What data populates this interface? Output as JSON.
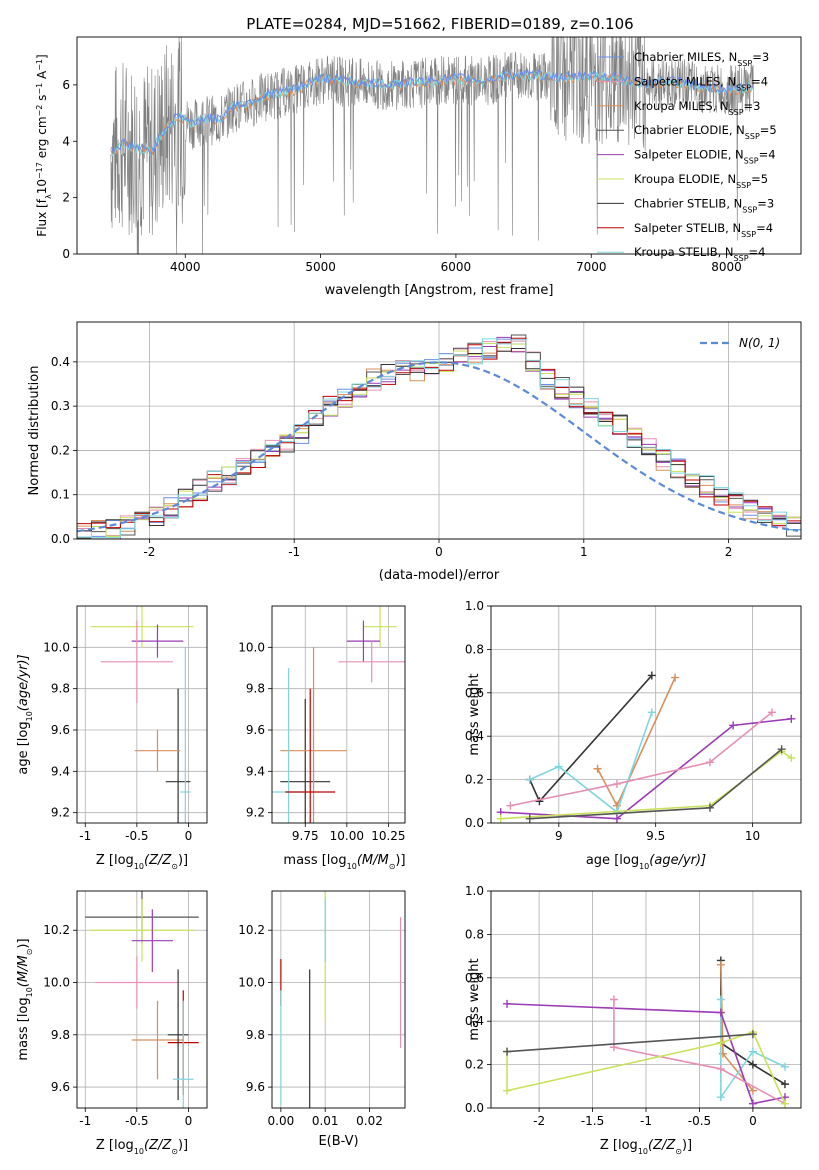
{
  "figure_title": "PLATE=0284, MJD=51662, FIBERID=0189, z=0.106",
  "colors": {
    "series": [
      "#6a8ee8",
      "#e68fb5",
      "#d98f5c",
      "#555555",
      "#9b3bb6",
      "#c8e35a",
      "#333333",
      "#c00000",
      "#7ed6de"
    ],
    "data": "#808080",
    "grid": "#b0b0b0",
    "normal": "#5b8ad6"
  },
  "chart_data": [
    {
      "type": "line",
      "xlabel": "wavelength [Angstrom, rest frame]",
      "ylabel": "Flux [f",
      "ylabel_rest": "10",
      "ylabel_units": " erg cm",
      "ylabel_tail": " s",
      "ylabel_end": " A",
      "xlim": [
        3200,
        8550
      ],
      "ylim": [
        0,
        7.7
      ],
      "xticks": [
        4000,
        5000,
        6000,
        7000,
        8000
      ],
      "yticks": [
        0,
        2,
        4,
        6
      ],
      "grid": false,
      "legend_placement": "top-right",
      "legend": [
        {
          "label": "Chabrier MILES, N",
          "n": "3"
        },
        {
          "label": "Salpeter MILES, N",
          "n": "4"
        },
        {
          "label": "Kroupa MILES, N",
          "n": "3"
        },
        {
          "label": "Chabrier ELODIE, N",
          "n": "5"
        },
        {
          "label": "Salpeter ELODIE, N",
          "n": "4"
        },
        {
          "label": "Kroupa ELODIE, N",
          "n": "5"
        },
        {
          "label": "Chabrier STELIB, N",
          "n": "3"
        },
        {
          "label": "Salpeter STELIB, N",
          "n": "4"
        },
        {
          "label": "Kroupa STELIB, N",
          "n": "4"
        }
      ],
      "legend_ssp": "SSP",
      "model_x": [
        3450,
        3550,
        3650,
        3750,
        3850,
        3950,
        4050,
        4150,
        4250,
        4350,
        4450,
        4600,
        4800,
        5000,
        5200,
        5400,
        5600,
        5800,
        6000,
        6200,
        6400,
        6600,
        6800,
        7000,
        7200,
        7400,
        7600,
        7800,
        8000,
        8200
      ],
      "model_y": [
        3.6,
        3.9,
        3.7,
        3.6,
        4.4,
        4.9,
        4.6,
        4.8,
        4.7,
        5.2,
        5.3,
        5.6,
        5.8,
        6.2,
        6.1,
        6.0,
        6.0,
        6.1,
        6.2,
        6.1,
        6.3,
        6.3,
        6.2,
        6.3,
        6.2,
        6.0,
        6.1,
        5.9,
        5.8,
        5.9
      ],
      "data_range": [
        3450,
        8200
      ]
    },
    {
      "type": "bar",
      "xlabel": "(data-model)/error",
      "ylabel": "Normed distribution",
      "xlim": [
        -2.5,
        2.5
      ],
      "ylim": [
        0,
        0.49
      ],
      "xticks": [
        -2,
        -1,
        0,
        1,
        2
      ],
      "yticks": [
        0.0,
        0.1,
        0.2,
        0.3,
        0.4
      ],
      "grid": true,
      "legend_placement": "top-right",
      "legend": [
        "N(0, 1)"
      ],
      "bin_width": 0.1,
      "bins_start": -2.5,
      "hist": [
        0.01,
        0.02,
        0.02,
        0.03,
        0.04,
        0.05,
        0.07,
        0.09,
        0.11,
        0.13,
        0.14,
        0.16,
        0.18,
        0.2,
        0.22,
        0.24,
        0.27,
        0.3,
        0.32,
        0.34,
        0.36,
        0.37,
        0.38,
        0.38,
        0.39,
        0.4,
        0.41,
        0.42,
        0.43,
        0.44,
        0.44,
        0.4,
        0.36,
        0.34,
        0.32,
        0.3,
        0.28,
        0.26,
        0.23,
        0.21,
        0.18,
        0.16,
        0.14,
        0.12,
        0.1,
        0.08,
        0.07,
        0.06,
        0.04,
        0.03
      ]
    },
    {
      "type": "scatter",
      "xlabel": "Z [log",
      "xlabel_tail": "(Z/Z",
      "xlabel_end": ")]",
      "ylabel": "age  [log",
      "ylabel_tail": "(age/yr)]",
      "xlim": [
        -1.08,
        0.18
      ],
      "ylim": [
        9.15,
        10.2
      ],
      "xticks": [
        -1.0,
        -0.5,
        0.0
      ],
      "yticks": [
        9.2,
        9.4,
        9.6,
        9.8,
        10.0
      ],
      "grid": true,
      "crosses": [
        {
          "x": -0.1,
          "y": 9.35,
          "xerr": 0.12,
          "yerr": 0.45,
          "c": 6
        },
        {
          "x": -0.45,
          "y": 10.1,
          "xerr": 0.5,
          "yerr": 0.1,
          "c": 5
        },
        {
          "x": -0.3,
          "y": 10.03,
          "xerr": 0.25,
          "yerr": 0.08,
          "c": 4
        },
        {
          "x": -0.5,
          "y": 9.93,
          "xerr": 0.35,
          "yerr": 0.2,
          "c": 1
        },
        {
          "x": -0.3,
          "y": 9.5,
          "xerr": 0.22,
          "yerr": 0.1,
          "c": 2
        },
        {
          "x": -0.03,
          "y": 9.3,
          "xerr": 0.05,
          "yerr": 0.7,
          "c": 8
        }
      ]
    },
    {
      "type": "scatter",
      "xlabel": "mass [log",
      "xlabel_tail": "(M/M",
      "xlabel_end": ")]",
      "xlim": [
        9.55,
        10.35
      ],
      "ylim": [
        9.15,
        10.2
      ],
      "xticks": [
        9.75,
        10.0,
        10.25
      ],
      "xtick_labels": [
        "9.75",
        "10.00",
        "10.25"
      ],
      "yticks": [
        9.2,
        9.4,
        9.6,
        9.8,
        10.0
      ],
      "grid": true,
      "crosses": [
        {
          "x": 9.75,
          "y": 9.35,
          "xerr": 0.15,
          "yerr": 0.4,
          "c": 6
        },
        {
          "x": 10.2,
          "y": 10.1,
          "xerr": 0.1,
          "yerr": 0.1,
          "c": 5
        },
        {
          "x": 10.1,
          "y": 10.03,
          "xerr": 0.1,
          "yerr": 0.1,
          "c": 4
        },
        {
          "x": 10.15,
          "y": 9.93,
          "xerr": 0.2,
          "yerr": 0.1,
          "c": 1
        },
        {
          "x": 9.8,
          "y": 9.5,
          "xerr": 0.2,
          "yerr": 0.5,
          "c": 2
        },
        {
          "x": 9.65,
          "y": 9.3,
          "xerr": 0.1,
          "yerr": 0.6,
          "c": 8
        },
        {
          "x": 9.78,
          "y": 9.3,
          "xerr": 0.15,
          "yerr": 0.5,
          "c": 7
        }
      ]
    },
    {
      "type": "line",
      "xlabel": "age  [log",
      "xlabel_tail": "(age/yr)]",
      "ylabel": "mass weight",
      "xlim": [
        8.65,
        10.25
      ],
      "ylim": [
        0,
        1
      ],
      "xticks": [
        9.0,
        9.5,
        10.0
      ],
      "yticks": [
        0.0,
        0.2,
        0.4,
        0.6,
        0.8,
        1.0
      ],
      "grid": true,
      "series": [
        {
          "c": 6,
          "x": [
            8.85,
            8.9,
            9.48
          ],
          "y": [
            0.2,
            0.1,
            0.68
          ]
        },
        {
          "c": 2,
          "x": [
            9.2,
            9.3,
            9.6
          ],
          "y": [
            0.25,
            0.08,
            0.67
          ]
        },
        {
          "c": 8,
          "x": [
            8.85,
            9.0,
            9.3,
            9.48
          ],
          "y": [
            0.2,
            0.26,
            0.05,
            0.51
          ]
        },
        {
          "c": 4,
          "x": [
            8.7,
            9.3,
            9.9,
            10.2
          ],
          "y": [
            0.05,
            0.02,
            0.45,
            0.48
          ]
        },
        {
          "c": 1,
          "x": [
            8.75,
            9.3,
            9.78,
            10.1
          ],
          "y": [
            0.08,
            0.18,
            0.28,
            0.51
          ]
        },
        {
          "c": 5,
          "x": [
            8.7,
            9.78,
            10.15,
            10.2
          ],
          "y": [
            0.02,
            0.08,
            0.33,
            0.3
          ]
        },
        {
          "c": 3,
          "x": [
            8.85,
            9.78,
            10.15
          ],
          "y": [
            0.02,
            0.07,
            0.34
          ]
        }
      ]
    },
    {
      "type": "scatter",
      "xlabel": "Z [log",
      "xlabel_tail": "(Z/Z",
      "xlabel_end": ")]",
      "ylabel": "mass [log",
      "ylabel_tail": "(M/M",
      "ylabel_end": ")]",
      "xlim": [
        -1.08,
        0.18
      ],
      "ylim": [
        9.52,
        10.35
      ],
      "xticks": [
        -1.0,
        -0.5,
        0.0
      ],
      "yticks": [
        9.6,
        9.8,
        10.0,
        10.2
      ],
      "grid": true,
      "crosses": [
        {
          "x": -0.45,
          "y": 10.25,
          "xerr": 0.55,
          "yerr": 0.1,
          "c": 3
        },
        {
          "x": -0.45,
          "y": 10.2,
          "xerr": 0.5,
          "yerr": 0.12,
          "c": 5
        },
        {
          "x": -0.35,
          "y": 10.16,
          "xerr": 0.2,
          "yerr": 0.12,
          "c": 4
        },
        {
          "x": -0.5,
          "y": 10.0,
          "xerr": 0.4,
          "yerr": 0.1,
          "c": 1
        },
        {
          "x": -0.3,
          "y": 9.78,
          "xerr": 0.25,
          "yerr": 0.15,
          "c": 2
        },
        {
          "x": -0.05,
          "y": 9.77,
          "xerr": 0.15,
          "yerr": 0.2,
          "c": 7
        },
        {
          "x": -0.1,
          "y": 9.8,
          "xerr": 0.1,
          "yerr": 0.25,
          "c": 6
        },
        {
          "x": -0.05,
          "y": 9.63,
          "xerr": 0.1,
          "yerr": 0.3,
          "c": 8
        }
      ]
    },
    {
      "type": "scatter",
      "xlabel": "E(B-V)",
      "xlim": [
        -0.002,
        0.028
      ],
      "ylim": [
        9.52,
        10.35
      ],
      "xticks": [
        0.0,
        0.01,
        0.02
      ],
      "xtick_labels": [
        "0.00",
        "0.01",
        "0.02"
      ],
      "yticks": [
        9.6,
        9.8,
        10.0,
        10.2
      ],
      "grid": true,
      "crosses": [
        {
          "x": 0.0,
          "y": 10.0,
          "xerr": 0,
          "yerr": 0.09,
          "c": 7
        },
        {
          "x": 0.0,
          "y": 9.75,
          "xerr": 0,
          "yerr": 0.22,
          "c": 8
        },
        {
          "x": 0.0065,
          "y": 9.75,
          "xerr": 0,
          "yerr": 0.3,
          "c": 6
        },
        {
          "x": 0.01,
          "y": 10.1,
          "xerr": 0,
          "yerr": 0.25,
          "c": 5
        },
        {
          "x": 0.01,
          "y": 10.2,
          "xerr": 0,
          "yerr": 0.12,
          "c": 8
        },
        {
          "x": 0.027,
          "y": 10.0,
          "xerr": 0,
          "yerr": 0.25,
          "c": 1
        }
      ]
    },
    {
      "type": "line",
      "xlabel": "Z [log",
      "xlabel_tail": "(Z/Z",
      "xlabel_end": ")]",
      "ylabel": "mass weight",
      "xlim": [
        -2.45,
        0.45
      ],
      "ylim": [
        0,
        1
      ],
      "xticks": [
        -2.0,
        -1.5,
        -1.0,
        -0.5,
        0.0
      ],
      "yticks": [
        0.0,
        0.2,
        0.4,
        0.6,
        0.8,
        1.0
      ],
      "grid": true,
      "series": [
        {
          "c": 6,
          "x": [
            -0.3,
            -0.3,
            0.0,
            0.3
          ],
          "y": [
            0.68,
            0.3,
            0.2,
            0.11
          ]
        },
        {
          "c": 2,
          "x": [
            -0.3,
            -0.28,
            0.0
          ],
          "y": [
            0.66,
            0.25,
            0.08
          ]
        },
        {
          "c": 8,
          "x": [
            -0.3,
            -0.3,
            0.0,
            0.3
          ],
          "y": [
            0.5,
            0.05,
            0.26,
            0.19
          ]
        },
        {
          "c": 4,
          "x": [
            -2.3,
            -0.3,
            0.0,
            0.3
          ],
          "y": [
            0.48,
            0.44,
            0.02,
            0.05
          ]
        },
        {
          "c": 1,
          "x": [
            -1.3,
            -1.3,
            -0.3,
            0.3
          ],
          "y": [
            0.5,
            0.28,
            0.18,
            0.02
          ]
        },
        {
          "c": 5,
          "x": [
            -2.3,
            -2.3,
            -0.3,
            0.0,
            0.3
          ],
          "y": [
            0.26,
            0.08,
            0.3,
            0.35,
            0.02
          ]
        },
        {
          "c": 3,
          "x": [
            -2.3,
            0.0
          ],
          "y": [
            0.26,
            0.34
          ]
        }
      ]
    }
  ]
}
